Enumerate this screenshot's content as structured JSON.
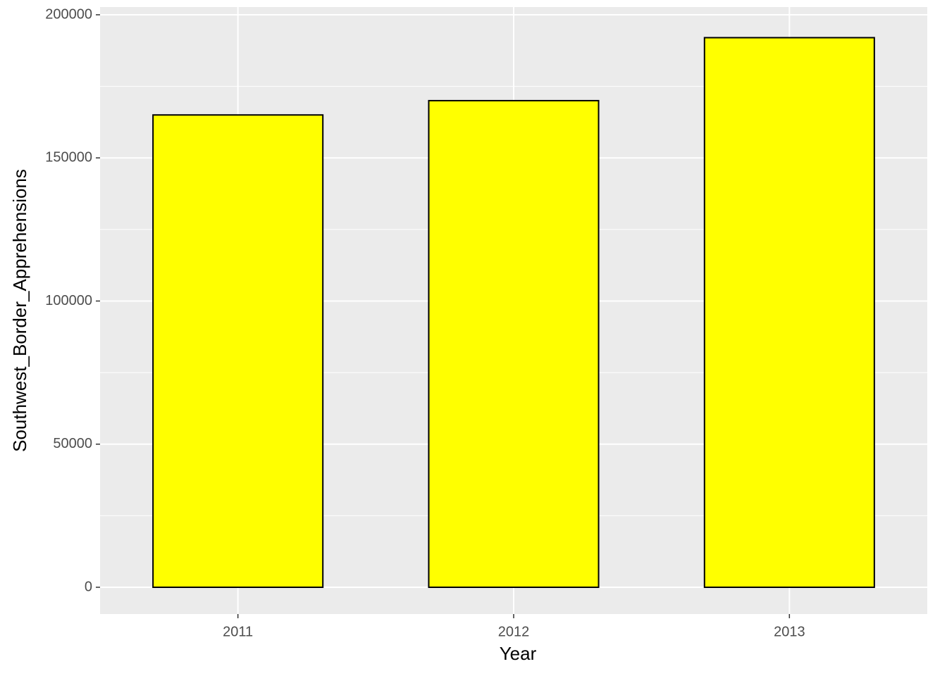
{
  "chart_data": {
    "type": "bar",
    "x_label": "Year",
    "y_label": "Southwest_Border_Apprehensions",
    "categories": [
      "2011",
      "2012",
      "2013"
    ],
    "values": [
      165000,
      170000,
      192000
    ],
    "color": "#ffff00",
    "ylim": [
      -9350,
      202700
    ],
    "yticks": [
      0,
      50000,
      100000,
      150000,
      200000
    ],
    "grid": true
  }
}
